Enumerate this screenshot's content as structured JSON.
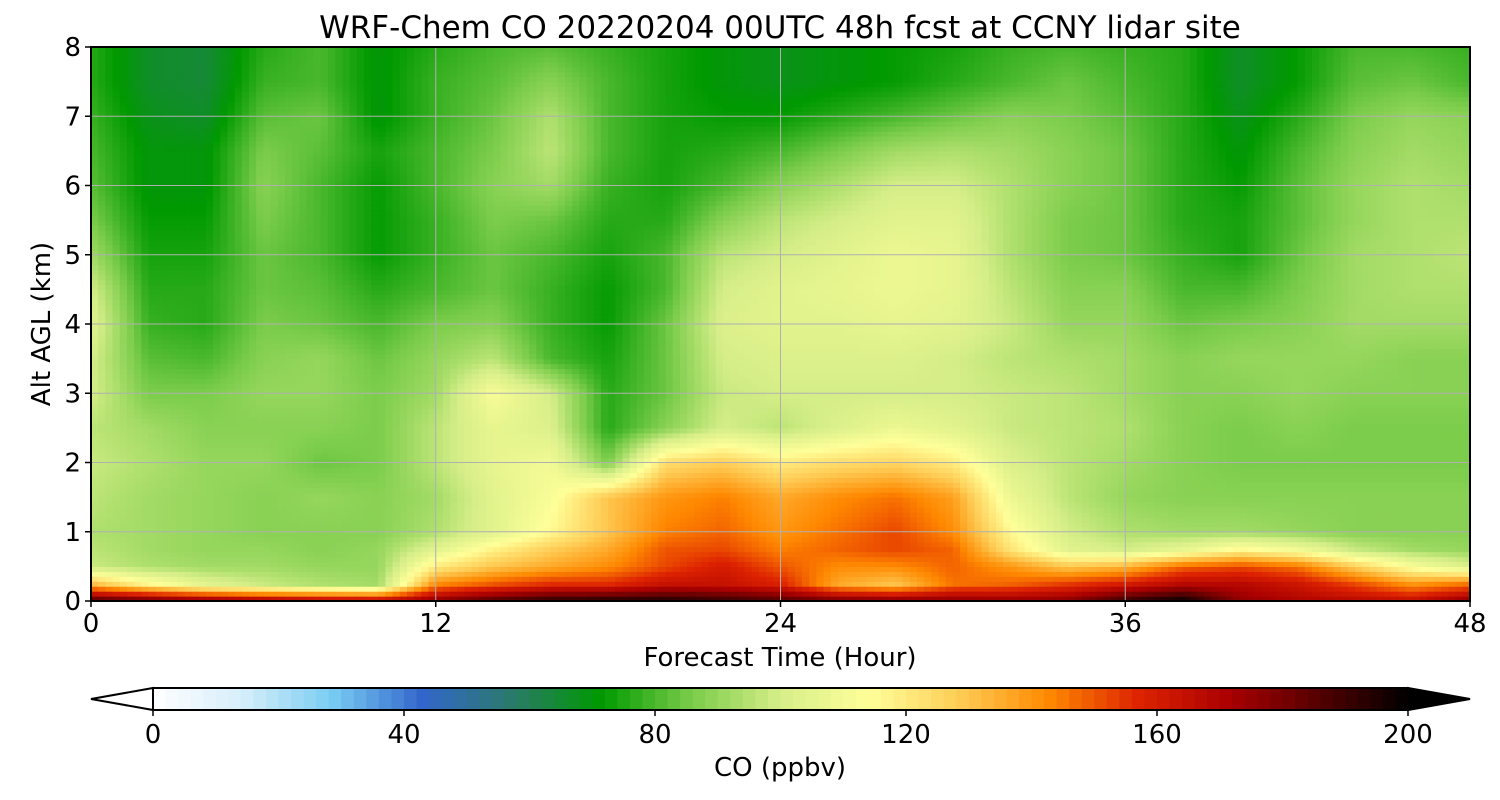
{
  "chart_data": {
    "type": "heatmap",
    "title": "WRF-Chem CO  20220204 00UTC 48h fcst at CCNY lidar site",
    "xlabel": "Forecast Time (Hour)",
    "ylabel": "Alt AGL (km)",
    "xlim": [
      0,
      48
    ],
    "ylim": [
      0,
      8
    ],
    "xticks": [
      0,
      12,
      24,
      36,
      48
    ],
    "yticks": [
      0,
      1,
      2,
      3,
      4,
      5,
      6,
      7,
      8
    ],
    "grid": true,
    "x": [
      0,
      2,
      4,
      6,
      8,
      10,
      12,
      14,
      16,
      18,
      20,
      22,
      24,
      26,
      28,
      30,
      32,
      34,
      36,
      38,
      40,
      42,
      44,
      46,
      48
    ],
    "y": [
      0,
      0.25,
      0.5,
      0.75,
      1,
      1.5,
      2,
      2.5,
      3,
      3.5,
      4,
      4.5,
      5,
      5.5,
      6,
      6.5,
      7,
      7.5,
      8
    ],
    "z": [
      [
        190,
        185,
        180,
        176,
        172,
        170,
        178,
        188,
        194,
        196,
        196,
        192,
        188,
        182,
        180,
        178,
        176,
        178,
        192,
        200,
        176,
        170,
        168,
        166,
        178
      ],
      [
        132,
        116,
        104,
        98,
        94,
        92,
        142,
        150,
        156,
        156,
        164,
        164,
        158,
        136,
        130,
        146,
        148,
        154,
        160,
        168,
        168,
        162,
        152,
        140,
        146
      ],
      [
        98,
        94,
        92,
        92,
        90,
        90,
        120,
        130,
        136,
        142,
        152,
        160,
        150,
        142,
        142,
        148,
        140,
        130,
        134,
        148,
        152,
        146,
        128,
        112,
        102
      ],
      [
        96,
        92,
        90,
        90,
        88,
        90,
        104,
        118,
        128,
        136,
        150,
        152,
        144,
        148,
        152,
        148,
        122,
        104,
        100,
        106,
        116,
        110,
        98,
        92,
        90
      ],
      [
        94,
        92,
        90,
        88,
        88,
        88,
        94,
        104,
        116,
        130,
        144,
        148,
        140,
        146,
        152,
        142,
        116,
        100,
        94,
        92,
        92,
        90,
        88,
        88,
        88
      ],
      [
        96,
        92,
        90,
        88,
        90,
        88,
        92,
        104,
        112,
        130,
        140,
        144,
        136,
        142,
        146,
        138,
        108,
        96,
        90,
        88,
        88,
        88,
        88,
        88,
        88
      ],
      [
        98,
        94,
        90,
        90,
        84,
        86,
        96,
        106,
        110,
        86,
        124,
        128,
        120,
        124,
        126,
        120,
        102,
        96,
        92,
        88,
        86,
        86,
        86,
        86,
        86
      ],
      [
        96,
        92,
        88,
        88,
        88,
        86,
        96,
        106,
        102,
        76,
        88,
        100,
        96,
        102,
        108,
        104,
        98,
        96,
        94,
        88,
        86,
        88,
        86,
        86,
        86
      ],
      [
        100,
        86,
        86,
        90,
        90,
        86,
        92,
        112,
        100,
        76,
        84,
        98,
        100,
        100,
        100,
        100,
        98,
        96,
        92,
        88,
        88,
        90,
        88,
        88,
        88
      ],
      [
        100,
        82,
        80,
        88,
        90,
        84,
        90,
        96,
        80,
        74,
        84,
        100,
        102,
        102,
        102,
        100,
        96,
        94,
        92,
        88,
        90,
        90,
        90,
        88,
        88
      ],
      [
        104,
        78,
        76,
        86,
        84,
        80,
        86,
        88,
        78,
        72,
        84,
        102,
        104,
        104,
        106,
        104,
        98,
        90,
        90,
        84,
        86,
        88,
        92,
        92,
        92
      ],
      [
        100,
        76,
        76,
        84,
        82,
        76,
        80,
        84,
        78,
        72,
        80,
        100,
        104,
        106,
        108,
        106,
        96,
        88,
        88,
        80,
        80,
        86,
        92,
        94,
        94
      ],
      [
        92,
        74,
        74,
        84,
        80,
        72,
        78,
        84,
        80,
        74,
        80,
        96,
        100,
        104,
        108,
        106,
        94,
        86,
        84,
        78,
        74,
        84,
        92,
        94,
        96
      ],
      [
        86,
        72,
        72,
        86,
        80,
        72,
        78,
        86,
        84,
        76,
        76,
        88,
        96,
        100,
        104,
        104,
        94,
        86,
        84,
        76,
        74,
        82,
        90,
        94,
        94
      ],
      [
        82,
        70,
        70,
        88,
        80,
        72,
        80,
        88,
        92,
        78,
        74,
        80,
        88,
        94,
        100,
        100,
        94,
        88,
        84,
        76,
        72,
        82,
        90,
        94,
        92
      ],
      [
        80,
        70,
        70,
        86,
        82,
        74,
        80,
        86,
        96,
        80,
        74,
        76,
        80,
        86,
        92,
        94,
        92,
        88,
        84,
        76,
        70,
        80,
        88,
        92,
        90
      ],
      [
        78,
        68,
        66,
        82,
        84,
        70,
        78,
        84,
        94,
        80,
        74,
        72,
        72,
        76,
        80,
        84,
        88,
        86,
        82,
        76,
        68,
        76,
        86,
        90,
        88
      ],
      [
        76,
        66,
        64,
        78,
        80,
        70,
        78,
        82,
        88,
        80,
        74,
        70,
        68,
        70,
        72,
        76,
        80,
        84,
        80,
        76,
        66,
        72,
        82,
        84,
        80
      ],
      [
        76,
        66,
        64,
        76,
        80,
        70,
        76,
        80,
        82,
        78,
        74,
        70,
        68,
        70,
        72,
        74,
        78,
        80,
        78,
        76,
        66,
        72,
        80,
        80,
        78
      ]
    ],
    "colorbar": {
      "label": "CO  (ppbv)",
      "ticks": [
        0,
        40,
        80,
        120,
        160,
        200
      ],
      "min": 0,
      "max": 200,
      "extend": "both",
      "colors": [
        "#ffffff",
        "#d6eefa",
        "#78ccf2",
        "#3366cc",
        "#2a7a6a",
        "#009900",
        "#7acc4a",
        "#d6ee88",
        "#ffff99",
        "#ffcc55",
        "#ff8800",
        "#dd2200",
        "#aa0000",
        "#550000",
        "#000000"
      ]
    }
  }
}
